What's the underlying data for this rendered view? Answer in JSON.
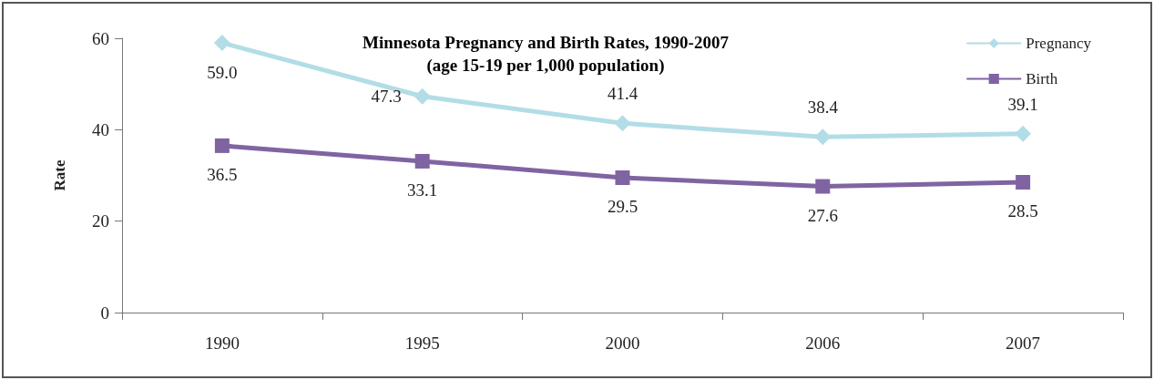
{
  "chart_data": {
    "type": "line",
    "title": "Minnesota Pregnancy and Birth Rates, 1990-2007",
    "subtitle": "(age 15-19 per 1,000 population)",
    "ylabel": "Rate",
    "categories": [
      "1990",
      "1995",
      "2000",
      "2006",
      "2007"
    ],
    "series": [
      {
        "name": "Pregnancy",
        "color": "#b3dde6",
        "marker": "diamond",
        "values": [
          59.0,
          47.3,
          41.4,
          38.4,
          39.1
        ],
        "value_labels": [
          "59.0",
          "47.3",
          "41.4",
          "38.4",
          "39.1"
        ]
      },
      {
        "name": "Birth",
        "color": "#8064a2",
        "marker": "square",
        "values": [
          36.5,
          33.1,
          29.5,
          27.6,
          28.5
        ],
        "value_labels": [
          "36.5",
          "33.1",
          "29.5",
          "27.6",
          "28.5"
        ]
      }
    ],
    "ylim": [
      0,
      60
    ],
    "yticks": [
      0,
      20,
      40,
      60
    ],
    "grid": false,
    "legend": "top right"
  }
}
